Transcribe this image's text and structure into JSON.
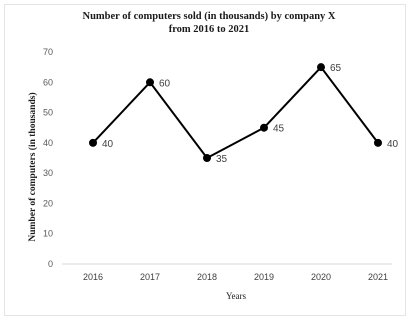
{
  "chart_data": {
    "type": "line",
    "title_line1": "Number of computers sold (in thousands) by company X",
    "title_line2": "from 2016 to 2021",
    "xlabel": "Years",
    "ylabel": "Number of computers (in thousands)",
    "categories": [
      "2016",
      "2017",
      "2018",
      "2019",
      "2020",
      "2021"
    ],
    "series": [
      {
        "values": [
          40,
          60,
          35,
          45,
          65,
          40
        ]
      }
    ],
    "ylim": [
      0,
      70
    ],
    "yticks": [
      0,
      10,
      20,
      30,
      40,
      50,
      60,
      70
    ],
    "grid": false,
    "data_labels": true,
    "colors": {
      "line": "#000000",
      "marker": "#000000",
      "label": "#404040"
    }
  }
}
